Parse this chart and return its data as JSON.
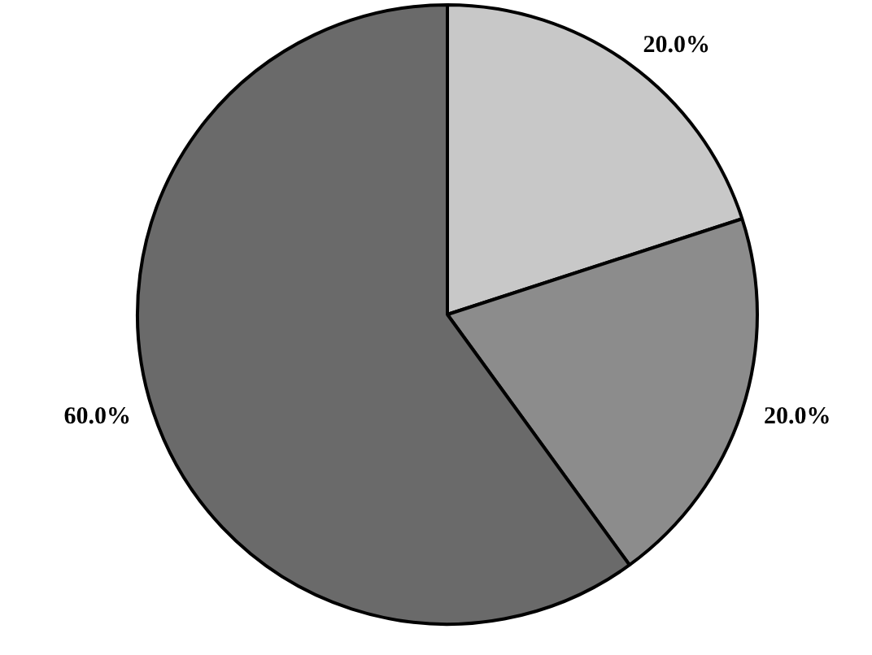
{
  "chart_data": {
    "type": "pie",
    "categories": [
      null,
      null,
      null
    ],
    "values": [
      20,
      20,
      60
    ],
    "colors": [
      "#c8c8c8",
      "#8c8c8c",
      "#6a6a6a"
    ],
    "value_labels": [
      "20.0%",
      "20.0%",
      "60.0%"
    ],
    "legend": false
  }
}
